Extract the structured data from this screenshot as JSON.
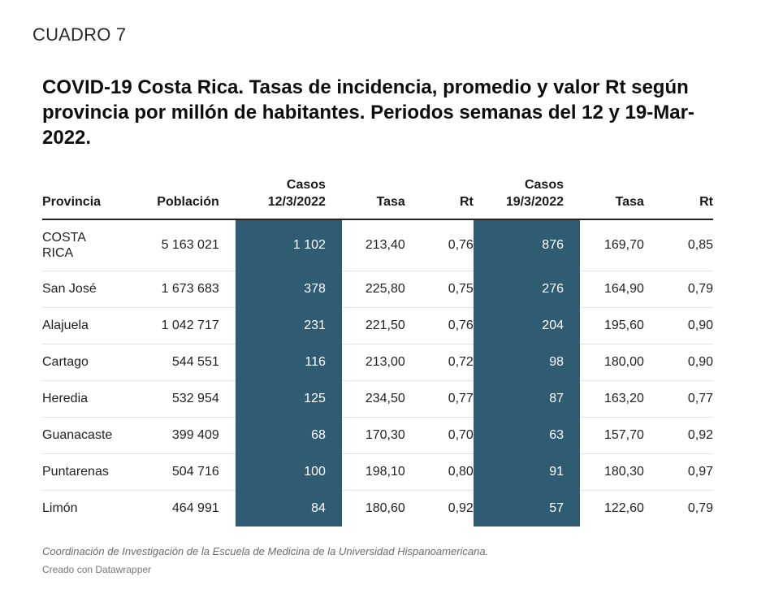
{
  "label": "CUADRO 7",
  "title": "COVID-19 Costa Rica. Tasas de incidencia, promedio y valor Rt según provincia por millón de habitantes. Periodos semanas del 12 y 19-Mar-2022.",
  "table": {
    "headers": {
      "provincia": "Provincia",
      "poblacion": "Población",
      "casos1_line1": "Casos",
      "casos1_line2": "12/3/2022",
      "tasa1": "Tasa",
      "rt1": "Rt",
      "casos2_line1": "Casos",
      "casos2_line2": "19/3/2022",
      "tasa2": "Tasa",
      "rt2": "Rt"
    },
    "rows": [
      {
        "provincia_line1": "COSTA",
        "provincia_line2": "RICA",
        "poblacion": "5 163 021",
        "casos1": "1 102",
        "tasa1": "213,40",
        "rt1": "0,76",
        "casos2": "876",
        "tasa2": "169,70",
        "rt2": "0,85"
      },
      {
        "provincia": "San José",
        "poblacion": "1 673 683",
        "casos1": "378",
        "tasa1": "225,80",
        "rt1": "0,75",
        "casos2": "276",
        "tasa2": "164,90",
        "rt2": "0,79"
      },
      {
        "provincia": "Alajuela",
        "poblacion": "1 042 717",
        "casos1": "231",
        "tasa1": "221,50",
        "rt1": "0,76",
        "casos2": "204",
        "tasa2": "195,60",
        "rt2": "0,90"
      },
      {
        "provincia": "Cartago",
        "poblacion": "544 551",
        "casos1": "116",
        "tasa1": "213,00",
        "rt1": "0,72",
        "casos2": "98",
        "tasa2": "180,00",
        "rt2": "0,90"
      },
      {
        "provincia": "Heredia",
        "poblacion": "532 954",
        "casos1": "125",
        "tasa1": "234,50",
        "rt1": "0,77",
        "casos2": "87",
        "tasa2": "163,20",
        "rt2": "0,77"
      },
      {
        "provincia": "Guanacaste",
        "poblacion": "399 409",
        "casos1": "68",
        "tasa1": "170,30",
        "rt1": "0,70",
        "casos2": "63",
        "tasa2": "157,70",
        "rt2": "0,92"
      },
      {
        "provincia": "Puntarenas",
        "poblacion": "504 716",
        "casos1": "100",
        "tasa1": "198,10",
        "rt1": "0,80",
        "casos2": "91",
        "tasa2": "180,30",
        "rt2": "0,97"
      },
      {
        "provincia": "Limón",
        "poblacion": "464 991",
        "casos1": "84",
        "tasa1": "180,60",
        "rt1": "0,92",
        "casos2": "57",
        "tasa2": "122,60",
        "rt2": "0,79"
      }
    ]
  },
  "footnote": "Coordinación de Investigación de la Escuela de Medicina de la Universidad Hispanoamericana.",
  "credit": "Creado con Datawrapper",
  "colors": {
    "highlight_column": "#2f5b73",
    "header_rule": "#222222",
    "row_rule": "#e2e2e2"
  }
}
